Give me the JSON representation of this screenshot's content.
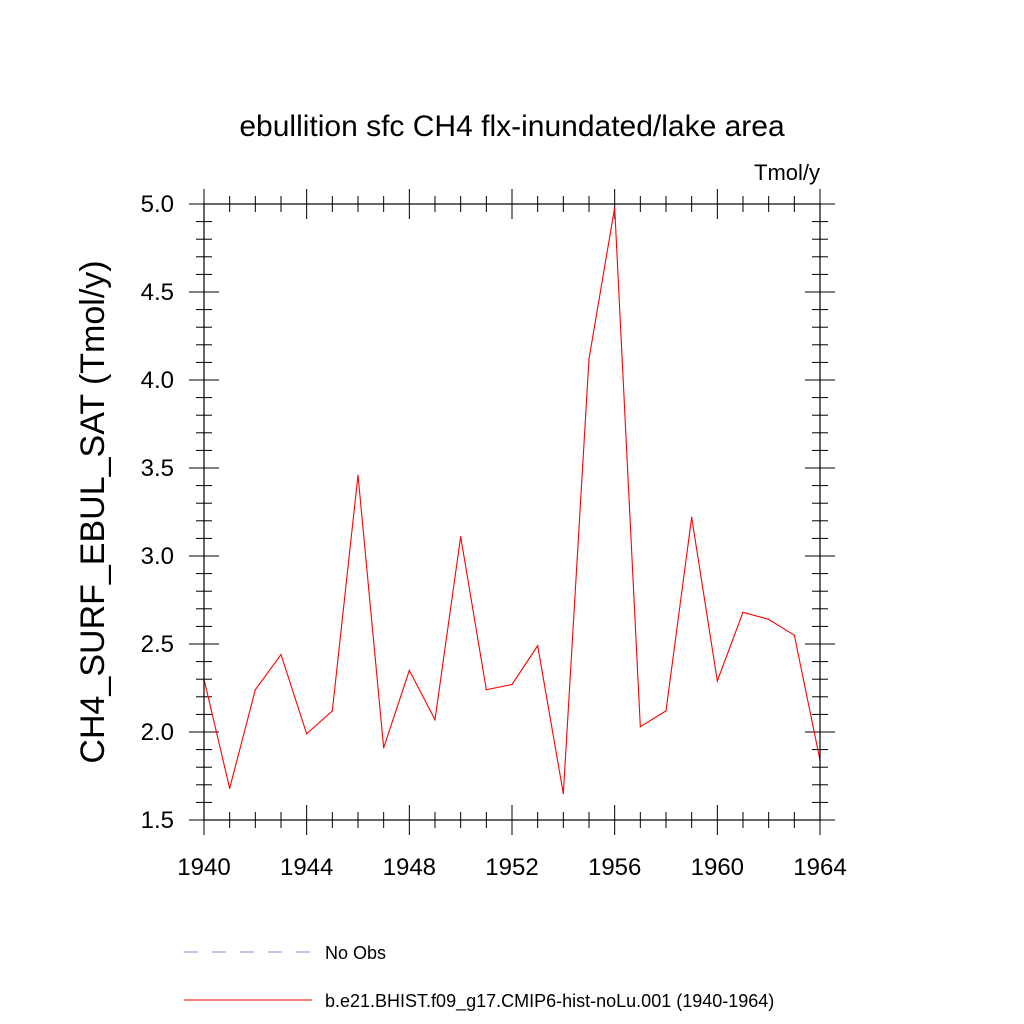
{
  "chart_data": {
    "type": "line",
    "title": "ebullition sfc CH4 flx-inundated/lake area",
    "units_label": "Tmol/y",
    "ylabel": "CH4_SURF_EBUL_SAT  (Tmol/y)",
    "xlabel": "",
    "xlim": [
      1940,
      1964
    ],
    "ylim": [
      1.5,
      5.0
    ],
    "x_ticks": [
      1940,
      1944,
      1948,
      1952,
      1956,
      1960,
      1964
    ],
    "x_tick_labels": [
      "1940",
      "1944",
      "1948",
      "1952",
      "1956",
      "1960",
      "1964"
    ],
    "y_ticks": [
      1.5,
      2.0,
      2.5,
      3.0,
      3.5,
      4.0,
      4.5,
      5.0
    ],
    "y_tick_labels": [
      "1.5",
      "2.0",
      "2.5",
      "3.0",
      "3.5",
      "4.0",
      "4.5",
      "5.0"
    ],
    "x_minor_step": 1,
    "y_minor_step": 0.1,
    "grid": false,
    "legend_position": "bottom",
    "series": [
      {
        "name": "b.e21.BHIST.f09_g17.CMIP6-hist-noLu.001 (1940-1964)",
        "color": "#ff0000",
        "style": "solid",
        "x": [
          1940,
          1941,
          1942,
          1943,
          1944,
          1945,
          1946,
          1947,
          1948,
          1949,
          1950,
          1951,
          1952,
          1953,
          1954,
          1955,
          1956,
          1957,
          1958,
          1959,
          1960,
          1961,
          1962,
          1963,
          1964
        ],
        "y": [
          2.3,
          1.68,
          2.24,
          2.44,
          1.99,
          2.12,
          3.46,
          1.91,
          2.35,
          2.07,
          3.11,
          2.24,
          2.27,
          2.49,
          1.65,
          4.12,
          4.98,
          2.03,
          2.12,
          3.22,
          2.29,
          2.68,
          2.64,
          2.55,
          1.84
        ]
      }
    ],
    "legend": [
      {
        "label": "No Obs",
        "color": "#8a8ad6",
        "style": "dashed"
      },
      {
        "label": "b.e21.BHIST.f09_g17.CMIP6-hist-noLu.001 (1940-1964)",
        "color": "#ff0000",
        "style": "solid"
      }
    ]
  }
}
